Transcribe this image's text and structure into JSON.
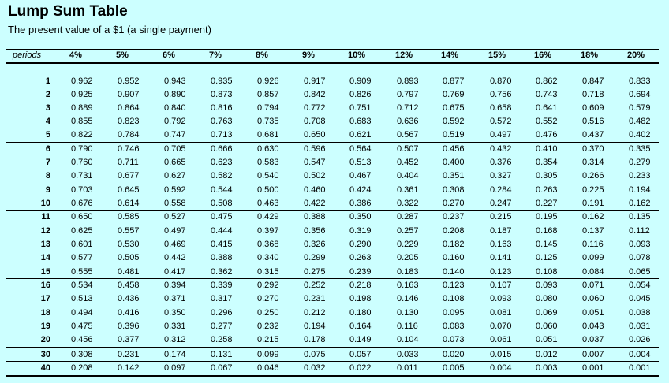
{
  "title": "Lump Sum Table",
  "subtitle": "The present value of a $1 (a single payment)",
  "periods_label": "periods",
  "rates": [
    "4%",
    "5%",
    "6%",
    "7%",
    "8%",
    "9%",
    "10%",
    "12%",
    "14%",
    "15%",
    "16%",
    "18%",
    "20%"
  ],
  "rows": [
    {
      "p": "1",
      "v": [
        "0.962",
        "0.952",
        "0.943",
        "0.935",
        "0.926",
        "0.917",
        "0.909",
        "0.893",
        "0.877",
        "0.870",
        "0.862",
        "0.847",
        "0.833"
      ]
    },
    {
      "p": "2",
      "v": [
        "0.925",
        "0.907",
        "0.890",
        "0.873",
        "0.857",
        "0.842",
        "0.826",
        "0.797",
        "0.769",
        "0.756",
        "0.743",
        "0.718",
        "0.694"
      ]
    },
    {
      "p": "3",
      "v": [
        "0.889",
        "0.864",
        "0.840",
        "0.816",
        "0.794",
        "0.772",
        "0.751",
        "0.712",
        "0.675",
        "0.658",
        "0.641",
        "0.609",
        "0.579"
      ]
    },
    {
      "p": "4",
      "v": [
        "0.855",
        "0.823",
        "0.792",
        "0.763",
        "0.735",
        "0.708",
        "0.683",
        "0.636",
        "0.592",
        "0.572",
        "0.552",
        "0.516",
        "0.482"
      ]
    },
    {
      "p": "5",
      "v": [
        "0.822",
        "0.784",
        "0.747",
        "0.713",
        "0.681",
        "0.650",
        "0.621",
        "0.567",
        "0.519",
        "0.497",
        "0.476",
        "0.437",
        "0.402"
      ]
    },
    {
      "p": "6",
      "v": [
        "0.790",
        "0.746",
        "0.705",
        "0.666",
        "0.630",
        "0.596",
        "0.564",
        "0.507",
        "0.456",
        "0.432",
        "0.410",
        "0.370",
        "0.335"
      ]
    },
    {
      "p": "7",
      "v": [
        "0.760",
        "0.711",
        "0.665",
        "0.623",
        "0.583",
        "0.547",
        "0.513",
        "0.452",
        "0.400",
        "0.376",
        "0.354",
        "0.314",
        "0.279"
      ]
    },
    {
      "p": "8",
      "v": [
        "0.731",
        "0.677",
        "0.627",
        "0.582",
        "0.540",
        "0.502",
        "0.467",
        "0.404",
        "0.351",
        "0.327",
        "0.305",
        "0.266",
        "0.233"
      ]
    },
    {
      "p": "9",
      "v": [
        "0.703",
        "0.645",
        "0.592",
        "0.544",
        "0.500",
        "0.460",
        "0.424",
        "0.361",
        "0.308",
        "0.284",
        "0.263",
        "0.225",
        "0.194"
      ]
    },
    {
      "p": "10",
      "v": [
        "0.676",
        "0.614",
        "0.558",
        "0.508",
        "0.463",
        "0.422",
        "0.386",
        "0.322",
        "0.270",
        "0.247",
        "0.227",
        "0.191",
        "0.162"
      ]
    },
    {
      "p": "11",
      "v": [
        "0.650",
        "0.585",
        "0.527",
        "0.475",
        "0.429",
        "0.388",
        "0.350",
        "0.287",
        "0.237",
        "0.215",
        "0.195",
        "0.162",
        "0.135"
      ]
    },
    {
      "p": "12",
      "v": [
        "0.625",
        "0.557",
        "0.497",
        "0.444",
        "0.397",
        "0.356",
        "0.319",
        "0.257",
        "0.208",
        "0.187",
        "0.168",
        "0.137",
        "0.112"
      ]
    },
    {
      "p": "13",
      "v": [
        "0.601",
        "0.530",
        "0.469",
        "0.415",
        "0.368",
        "0.326",
        "0.290",
        "0.229",
        "0.182",
        "0.163",
        "0.145",
        "0.116",
        "0.093"
      ]
    },
    {
      "p": "14",
      "v": [
        "0.577",
        "0.505",
        "0.442",
        "0.388",
        "0.340",
        "0.299",
        "0.263",
        "0.205",
        "0.160",
        "0.141",
        "0.125",
        "0.099",
        "0.078"
      ]
    },
    {
      "p": "15",
      "v": [
        "0.555",
        "0.481",
        "0.417",
        "0.362",
        "0.315",
        "0.275",
        "0.239",
        "0.183",
        "0.140",
        "0.123",
        "0.108",
        "0.084",
        "0.065"
      ]
    },
    {
      "p": "16",
      "v": [
        "0.534",
        "0.458",
        "0.394",
        "0.339",
        "0.292",
        "0.252",
        "0.218",
        "0.163",
        "0.123",
        "0.107",
        "0.093",
        "0.071",
        "0.054"
      ]
    },
    {
      "p": "17",
      "v": [
        "0.513",
        "0.436",
        "0.371",
        "0.317",
        "0.270",
        "0.231",
        "0.198",
        "0.146",
        "0.108",
        "0.093",
        "0.080",
        "0.060",
        "0.045"
      ]
    },
    {
      "p": "18",
      "v": [
        "0.494",
        "0.416",
        "0.350",
        "0.296",
        "0.250",
        "0.212",
        "0.180",
        "0.130",
        "0.095",
        "0.081",
        "0.069",
        "0.051",
        "0.038"
      ]
    },
    {
      "p": "19",
      "v": [
        "0.475",
        "0.396",
        "0.331",
        "0.277",
        "0.232",
        "0.194",
        "0.164",
        "0.116",
        "0.083",
        "0.070",
        "0.060",
        "0.043",
        "0.031"
      ]
    },
    {
      "p": "20",
      "v": [
        "0.456",
        "0.377",
        "0.312",
        "0.258",
        "0.215",
        "0.178",
        "0.149",
        "0.104",
        "0.073",
        "0.061",
        "0.051",
        "0.037",
        "0.026"
      ]
    },
    {
      "p": "30",
      "v": [
        "0.308",
        "0.231",
        "0.174",
        "0.131",
        "0.099",
        "0.075",
        "0.057",
        "0.033",
        "0.020",
        "0.015",
        "0.012",
        "0.007",
        "0.004"
      ]
    },
    {
      "p": "40",
      "v": [
        "0.208",
        "0.142",
        "0.097",
        "0.067",
        "0.046",
        "0.032",
        "0.022",
        "0.011",
        "0.005",
        "0.004",
        "0.003",
        "0.001",
        "0.001"
      ]
    }
  ]
}
